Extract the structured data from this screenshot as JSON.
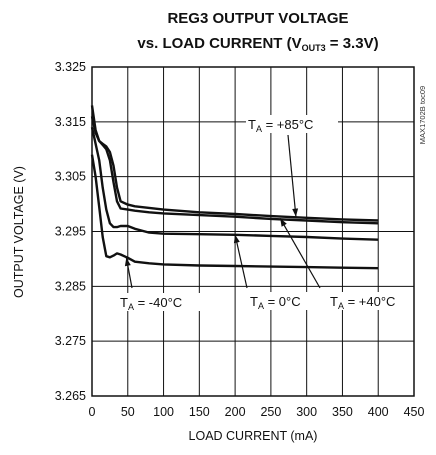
{
  "chart_data": {
    "type": "line",
    "title_line1": "REG3 OUTPUT VOLTAGE",
    "title_line2_prefix": "vs. LOAD CURRENT (V",
    "title_line2_sub": "OUT3",
    "title_line2_suffix": " = 3.3V)",
    "xlabel": "LOAD CURRENT (mA)",
    "ylabel": "OUTPUT VOLTAGE (V)",
    "side_label": "MAX1702B toc09",
    "xlim": [
      0,
      450
    ],
    "ylim": [
      3.265,
      3.325
    ],
    "x_ticks": [
      "0",
      "50",
      "100",
      "150",
      "200",
      "250",
      "300",
      "350",
      "400",
      "450"
    ],
    "y_ticks": [
      "3.325",
      "3.315",
      "3.305",
      "3.295",
      "3.285",
      "3.275",
      "3.265"
    ],
    "grid": true,
    "series": [
      {
        "name": "T_A = +85°C",
        "x": [
          0,
          5,
          10,
          15,
          20,
          25,
          30,
          35,
          40,
          50,
          60,
          80,
          100,
          150,
          200,
          250,
          300,
          350,
          400
        ],
        "y": [
          3.318,
          3.3135,
          3.3115,
          3.311,
          3.3105,
          3.3095,
          3.307,
          3.303,
          3.3005,
          3.2999,
          3.2996,
          3.2993,
          3.299,
          3.2985,
          3.2982,
          3.2978,
          3.2975,
          3.2972,
          3.297
        ]
      },
      {
        "name": "T_A = +40°C",
        "x": [
          0,
          5,
          10,
          15,
          20,
          25,
          30,
          35,
          40,
          50,
          60,
          80,
          100,
          150,
          200,
          250,
          300,
          350,
          400
        ],
        "y": [
          3.316,
          3.313,
          3.3115,
          3.3108,
          3.31,
          3.308,
          3.304,
          3.3005,
          3.2992,
          3.299,
          3.2988,
          3.2985,
          3.2983,
          3.298,
          3.2977,
          3.2973,
          3.297,
          3.2967,
          3.2965
        ]
      },
      {
        "name": "T_A = 0°C",
        "x": [
          0,
          5,
          10,
          15,
          20,
          25,
          30,
          35,
          40,
          50,
          60,
          80,
          100,
          150,
          200,
          250,
          300,
          350,
          400
        ],
        "y": [
          3.314,
          3.311,
          3.308,
          3.303,
          3.299,
          3.2965,
          3.2958,
          3.2958,
          3.296,
          3.296,
          3.2955,
          3.2948,
          3.2946,
          3.2945,
          3.2944,
          3.2942,
          3.294,
          3.2937,
          3.2935
        ]
      },
      {
        "name": "T_A = -40°C",
        "x": [
          0,
          5,
          10,
          15,
          20,
          25,
          30,
          35,
          40,
          50,
          60,
          80,
          100,
          150,
          200,
          250,
          300,
          350,
          400
        ],
        "y": [
          3.309,
          3.305,
          3.2995,
          3.294,
          3.2905,
          3.2903,
          3.2906,
          3.291,
          3.2908,
          3.2902,
          3.2895,
          3.2892,
          3.289,
          3.2888,
          3.2887,
          3.2886,
          3.2885,
          3.2884,
          3.2883
        ]
      }
    ],
    "annotations": [
      {
        "prefix": "T",
        "sub": "A",
        "suffix": " = +85°C",
        "target_x": 285,
        "target_y": 3.2977
      },
      {
        "prefix": "T",
        "sub": "A",
        "suffix": " = -40°C",
        "target_x": 48,
        "target_y": 3.2902
      },
      {
        "prefix": "T",
        "sub": "A",
        "suffix": " = 0°C",
        "target_x": 200,
        "target_y": 3.2944
      },
      {
        "prefix": "T",
        "sub": "A",
        "suffix": " = +40°C",
        "target_x": 263,
        "target_y": 3.2974
      }
    ]
  }
}
